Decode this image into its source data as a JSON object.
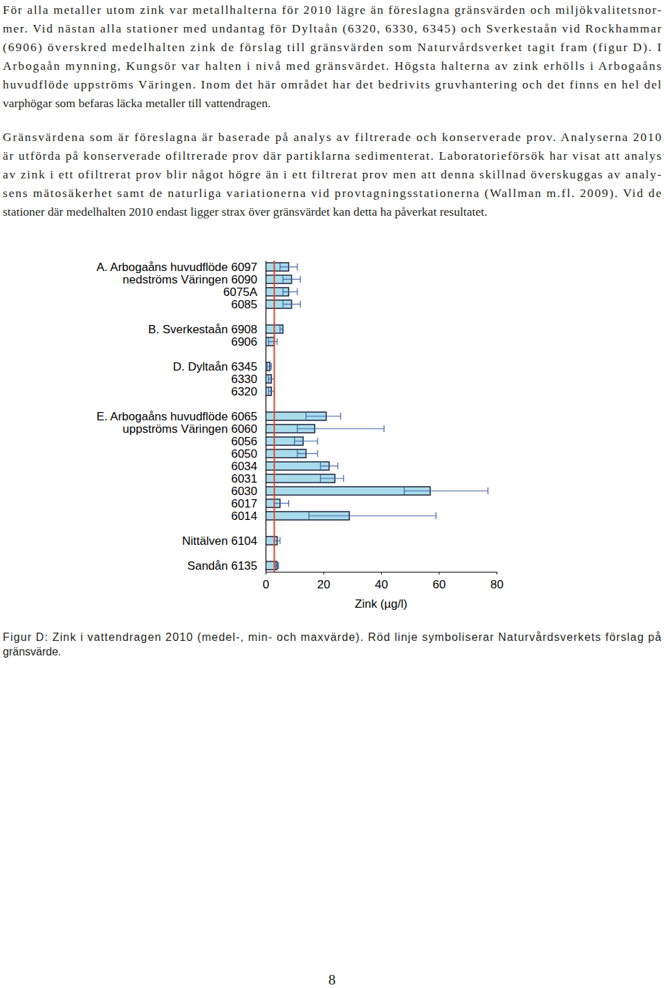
{
  "paragraphs": [
    {
      "lines": [
        "För alla metaller utom zink var metallhalterna för 2010 lägre än föreslagna gränsvärden och miljökvalitetsnor-",
        "mer. Vid nästan alla stationer med undantag för Dyltaån (6320, 6330, 6345) och Sverkestaån vid Rockhammar",
        "(6906) överskred medelhalten zink de förslag till gränsvärden som Naturvårdsverket tagit fram (figur D). I",
        "Arbogaån mynning, Kungsör var halten i nivå med gränsvärdet. Högsta halterna av zink erhölls i Arbogaåns",
        "huvudflöde uppströms Väringen. Inom det här området har det bedrivits gruvhantering och det finns en hel del",
        "varphögar som befaras läcka metaller till vattendragen."
      ]
    },
    {
      "lines": [
        "Gränsvärdena som är föreslagna är baserade på analys av filtrerade och konserverade prov. Analyserna 2010",
        "är utförda på konserverade ofiltrerade prov där partiklarna sedimenterat. Laboratorieförsök har visat att analys",
        "av zink i ett ofiltrerat prov blir något högre än i ett filtrerat prov men att denna skillnad överskuggas av analy-",
        "sens mätosäkerhet samt de naturliga variationerna vid provtagningsstationerna (Wallman m.fl. 2009). Vid de",
        "stationer där medelhalten 2010 endast ligger strax över gränsvärdet kan detta ha påverkat resultatet."
      ]
    }
  ],
  "chart_data": {
    "type": "bar",
    "orientation": "horizontal",
    "categories": [
      "A. Arbogaåns huvudflöde 6097",
      "nedströms Väringen 6090",
      "6075A",
      "6085",
      null,
      "B. Sverkestaån 6908",
      "6906",
      null,
      "D. Dyltaån 6345",
      "6330",
      "6320",
      null,
      "E. Arbogaåns huvudflöde 6065",
      "uppströms Väringen 6060",
      "6056",
      "6050",
      "6034",
      "6031",
      "6030",
      "6017",
      "6014",
      null,
      "Nittälven 6104",
      null,
      "Sandån 6135"
    ],
    "values": [
      8,
      9,
      8,
      9,
      null,
      6,
      3,
      null,
      1.5,
      2,
      2,
      null,
      21,
      17,
      13,
      14,
      22,
      24,
      57,
      5,
      29,
      null,
      4,
      null,
      4
    ],
    "min": [
      5,
      6,
      6,
      6,
      null,
      5,
      1,
      null,
      0.5,
      1,
      1,
      null,
      14,
      11,
      10,
      11,
      19,
      19,
      48,
      3,
      15,
      null,
      3,
      null,
      3.5
    ],
    "max": [
      11,
      12,
      11,
      12,
      null,
      6,
      4,
      null,
      2,
      3,
      3,
      null,
      26,
      41,
      18,
      18,
      25,
      27,
      77,
      8,
      59,
      null,
      5,
      null,
      4.5
    ],
    "color": "#a9dcea",
    "xlim": [
      0,
      80
    ],
    "xticks": [
      0,
      20,
      40,
      60,
      80
    ],
    "xlabel": "Zink (µg/l)",
    "reference_line": 3
  },
  "caption": [
    "Figur D: Zink i vattendragen 2010 (medel-, min- och maxvärde). Röd linje symboliserar Naturvårdsverkets förslag på",
    "gränsvärde."
  ],
  "page_number": "8"
}
